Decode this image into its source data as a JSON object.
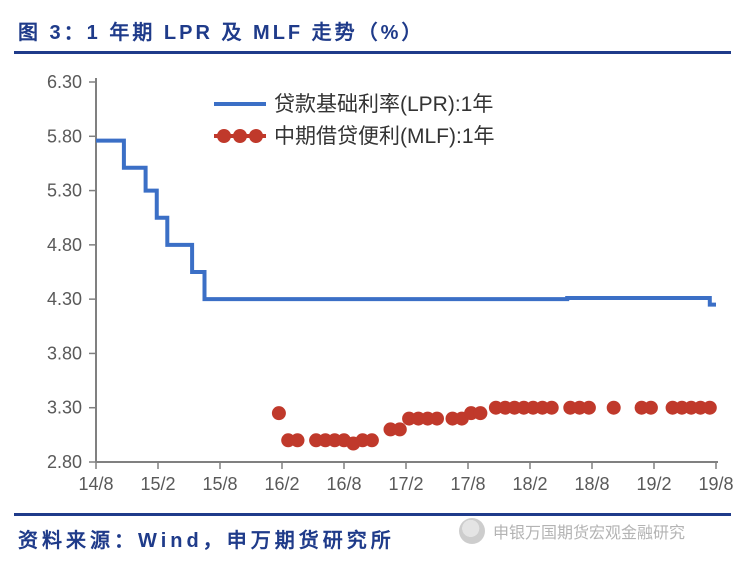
{
  "title": "图 3：1 年期 LPR 及 MLF 走势（%）",
  "footer": "资料来源：Wind，申万期货研究所",
  "watermark": "申银万国期货宏观金融研究",
  "chart": {
    "type": "line+scatter",
    "background_color": "#ffffff",
    "axis_color": "#808080",
    "axis_width": 2,
    "tick_color": "#808080",
    "label_color": "#595959",
    "label_fontsize": 18,
    "ylim": [
      2.8,
      6.3
    ],
    "ytick_step": 0.5,
    "yticks": [
      "2.80",
      "3.30",
      "3.80",
      "4.30",
      "4.80",
      "5.30",
      "5.80",
      "6.30"
    ],
    "x_categories": [
      "14/8",
      "15/2",
      "15/8",
      "16/2",
      "16/8",
      "17/2",
      "17/8",
      "18/2",
      "18/8",
      "19/2",
      "19/8"
    ],
    "legend": {
      "items": [
        {
          "label": "贷款基础利率(LPR):1年",
          "color": "#3b6fc6",
          "marker": "line"
        },
        {
          "label": "中期借贷便利(MLF):1年",
          "color": "#c0392b",
          "marker": "circle"
        }
      ],
      "fontsize": 21,
      "text_color": "#333333",
      "line_width": 4,
      "marker_radius": 7
    },
    "series": {
      "lpr": {
        "color": "#3b6fc6",
        "width": 4,
        "step": true,
        "points": [
          [
            0.0,
            5.76
          ],
          [
            0.45,
            5.76
          ],
          [
            0.45,
            5.51
          ],
          [
            0.8,
            5.51
          ],
          [
            0.8,
            5.3
          ],
          [
            0.98,
            5.3
          ],
          [
            0.98,
            5.05
          ],
          [
            1.15,
            5.05
          ],
          [
            1.15,
            4.8
          ],
          [
            1.55,
            4.8
          ],
          [
            1.55,
            4.55
          ],
          [
            1.75,
            4.55
          ],
          [
            1.75,
            4.3
          ],
          [
            7.6,
            4.3
          ],
          [
            7.6,
            4.31
          ],
          [
            9.9,
            4.31
          ],
          [
            9.9,
            4.25
          ],
          [
            10.0,
            4.25
          ]
        ]
      },
      "mlf": {
        "color": "#c0392b",
        "radius": 7,
        "points": [
          [
            2.95,
            3.25
          ],
          [
            3.1,
            3.0
          ],
          [
            3.25,
            3.0
          ],
          [
            3.55,
            3.0
          ],
          [
            3.7,
            3.0
          ],
          [
            3.85,
            3.0
          ],
          [
            4.0,
            3.0
          ],
          [
            4.15,
            2.97
          ],
          [
            4.3,
            3.0
          ],
          [
            4.45,
            3.0
          ],
          [
            4.75,
            3.1
          ],
          [
            4.9,
            3.1
          ],
          [
            5.05,
            3.2
          ],
          [
            5.2,
            3.2
          ],
          [
            5.35,
            3.2
          ],
          [
            5.5,
            3.2
          ],
          [
            5.75,
            3.2
          ],
          [
            5.9,
            3.2
          ],
          [
            6.05,
            3.25
          ],
          [
            6.2,
            3.25
          ],
          [
            6.45,
            3.3
          ],
          [
            6.6,
            3.3
          ],
          [
            6.75,
            3.3
          ],
          [
            6.9,
            3.3
          ],
          [
            7.05,
            3.3
          ],
          [
            7.2,
            3.3
          ],
          [
            7.35,
            3.3
          ],
          [
            7.65,
            3.3
          ],
          [
            7.8,
            3.3
          ],
          [
            7.95,
            3.3
          ],
          [
            8.35,
            3.3
          ],
          [
            8.8,
            3.3
          ],
          [
            8.95,
            3.3
          ],
          [
            9.3,
            3.3
          ],
          [
            9.45,
            3.3
          ],
          [
            9.6,
            3.3
          ],
          [
            9.75,
            3.3
          ],
          [
            9.9,
            3.3
          ]
        ]
      }
    }
  }
}
